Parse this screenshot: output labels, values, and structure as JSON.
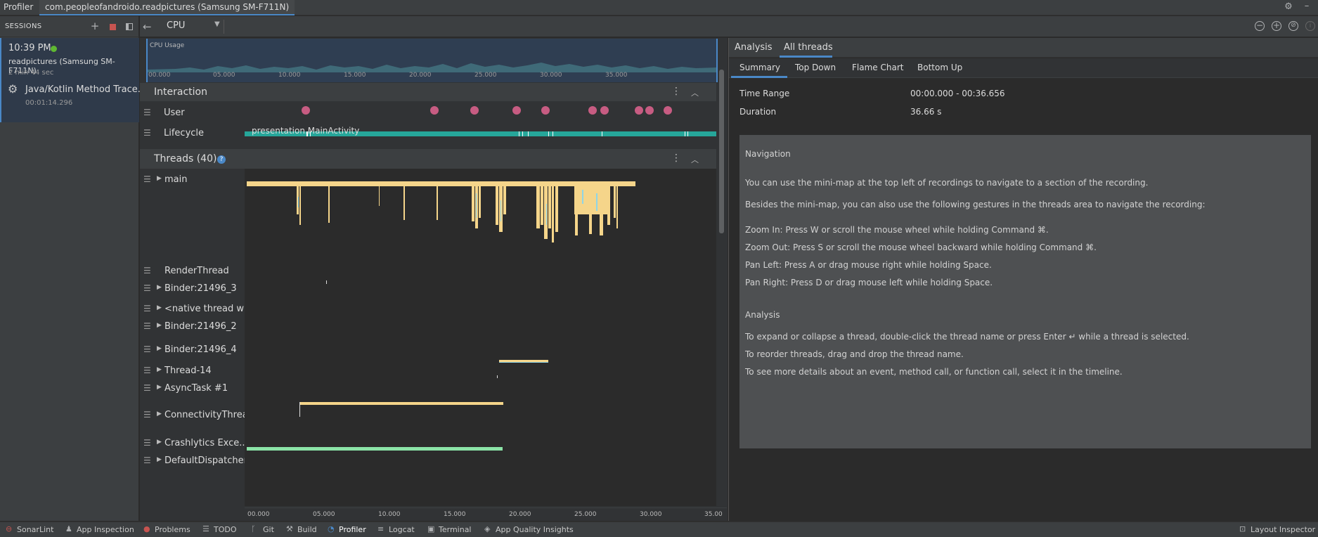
{
  "top_tabs": {
    "profiler": "Profiler",
    "session": "com.peopleofandroido.readpictures (Samsung SM-F711N)"
  },
  "sessions": {
    "header": "SESSIONS",
    "time": "10:39 PM",
    "device": "readpictures (Samsung SM-F711N)",
    "duration": "2 min 44 sec",
    "trace_name": "Java/Kotlin Method Trace...",
    "trace_time": "00:01:14.296"
  },
  "toolbar": {
    "cpu_select": "CPU"
  },
  "cpu_usage": {
    "label": "CPU Usage",
    "ticks": [
      "00.000",
      "05.000",
      "10.000",
      "15.000",
      "20.000",
      "25.000",
      "30.000",
      "35.000"
    ]
  },
  "interaction": {
    "title": "Interaction",
    "user": "User",
    "lifecycle": "Lifecycle",
    "activity": "presentation.MainActivity"
  },
  "threads": {
    "title": "Threads (40)",
    "help": "?",
    "names": [
      "main",
      "RenderThread",
      "Binder:21496_3",
      "<native thread wit...",
      "Binder:21496_2",
      "Binder:21496_4",
      "Thread-14",
      "AsyncTask #1",
      "ConnectivityThread",
      "Crashlytics Exce...",
      "DefaultDispatcher..."
    ]
  },
  "axis_ticks": [
    "00.000",
    "05.000",
    "10.000",
    "15.000",
    "20.000",
    "25.000",
    "30.000",
    "35.00"
  ],
  "right": {
    "tabs": [
      "Analysis",
      "All threads"
    ],
    "subtabs": [
      "Summary",
      "Top Down",
      "Flame Chart",
      "Bottom Up"
    ],
    "time_range_label": "Time Range",
    "time_range_value": "00:00.000 - 00:36.656",
    "duration_label": "Duration",
    "duration_value": "36.66 s",
    "nav_lines": [
      "Navigation",
      "You can use the mini-map at the top left of recordings to navigate to a section of the recording.",
      "Besides the mini-map, you can also use the following gestures in the threads area to navigate the recording:",
      "Zoom In: Press W or scroll the mouse wheel while holding Command ⌘.",
      "Zoom Out: Press S or scroll the mouse wheel backward while holding Command ⌘.",
      "Pan Left: Press A or drag mouse right while holding Space.",
      "Pan Right: Press D or drag mouse left while holding Space.",
      "Analysis",
      "To expand or collapse a thread, double-click the thread name or press Enter ↵ while a thread is selected.",
      "To reorder threads, drag and drop the thread name.",
      "To see more details about an event, method call, or function call, select it in the timeline."
    ]
  },
  "statusbar": {
    "items": [
      "SonarLint",
      "App Inspection",
      "Problems",
      "TODO",
      "Git",
      "Build",
      "Profiler",
      "Logcat",
      "Terminal",
      "App Quality Insights",
      "Layout Inspector"
    ]
  },
  "icons": {
    "gear": "gear-icon",
    "minimize": "minimize-icon",
    "add": "add-icon",
    "stop": "stop-icon",
    "layout": "layout-icon",
    "zoom_out": "zoom-out-icon",
    "zoom_in": "zoom-in-icon",
    "reset": "reset-zoom-icon",
    "info": "info-icon"
  },
  "colors": {
    "accent": "#4a88c7",
    "live": "#5fb832",
    "user_event": "#c75c82",
    "lifecycle": "#26a69a",
    "thread_running": "#f5d58a",
    "thread_green": "#8be3a7",
    "stop": "#c75450"
  }
}
